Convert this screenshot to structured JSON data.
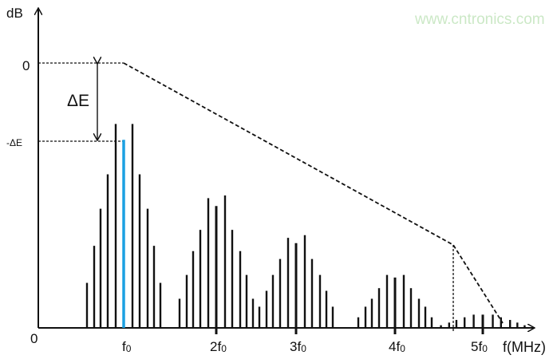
{
  "axes": {
    "y_label": "dB",
    "y_zero_label": "0",
    "origin_label": "0",
    "x_unit_label": "f(MHz)",
    "delta_label": "ΔE",
    "minus_delta_label": "-ΔE"
  },
  "harmonics": [
    {
      "label_main": "f",
      "label_sub": "0",
      "multiple": 1,
      "amplitudes": [
        17,
        31,
        45,
        58,
        77,
        71,
        77,
        58,
        45,
        31,
        17
      ],
      "center_color": "#1ba1e2"
    },
    {
      "label_main": "2f",
      "label_sub": "0",
      "multiple": 2,
      "amplitudes": [
        11,
        20,
        29,
        37,
        49,
        46,
        50,
        37,
        29,
        20,
        11
      ]
    },
    {
      "label_main": "3f",
      "label_sub": "0",
      "multiple": 3,
      "amplitudes": [
        8,
        14,
        20,
        26,
        34,
        32,
        35,
        26,
        20,
        14,
        8
      ]
    },
    {
      "label_main": "4f",
      "label_sub": "0",
      "multiple": 4,
      "amplitudes": [
        4,
        8,
        11,
        15,
        20,
        19,
        20,
        15,
        11,
        8,
        4
      ]
    },
    {
      "label_main": "5f",
      "label_sub": "0",
      "multiple": 5,
      "amplitudes": [
        1,
        2,
        3,
        4,
        5,
        5,
        5,
        4,
        3,
        2,
        1
      ]
    }
  ],
  "envelope": {
    "style": "dashed",
    "color": "#111111"
  },
  "watermark": "www.cntronics.com"
}
